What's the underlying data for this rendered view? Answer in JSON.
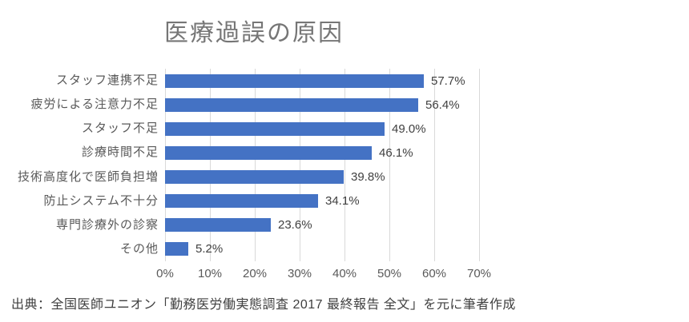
{
  "title": "医療過誤の原因",
  "source_note": "出典：全国医師ユニオン「勤務医労働実態調査 2017 最終報告 全文」を元に筆者作成",
  "chart_data": {
    "type": "bar",
    "orientation": "horizontal",
    "title": "医療過誤の原因",
    "categories": [
      "スタッフ連携不足",
      "疲労による注意力不足",
      "スタッフ不足",
      "診療時間不足",
      "技術高度化で医師負担増",
      "防止システム不十分",
      "専門診療外の診察",
      "その他"
    ],
    "values": [
      57.7,
      56.4,
      49.0,
      46.1,
      39.8,
      34.1,
      23.6,
      5.2
    ],
    "data_labels": [
      "57.7%",
      "56.4%",
      "49.0%",
      "46.1%",
      "39.8%",
      "34.1%",
      "23.6%",
      "5.2%"
    ],
    "x_tick_labels": [
      "0%",
      "10%",
      "20%",
      "30%",
      "40%",
      "50%",
      "60%",
      "70%"
    ],
    "xlim": [
      0,
      70
    ],
    "xlabel": "",
    "ylabel": "",
    "grid": true,
    "legend": false,
    "bar_color": "#4472C4",
    "gridline_color": "#D9D9D9",
    "label_color": "#595959",
    "data_label_color": "#404040",
    "title_color": "#767676"
  }
}
